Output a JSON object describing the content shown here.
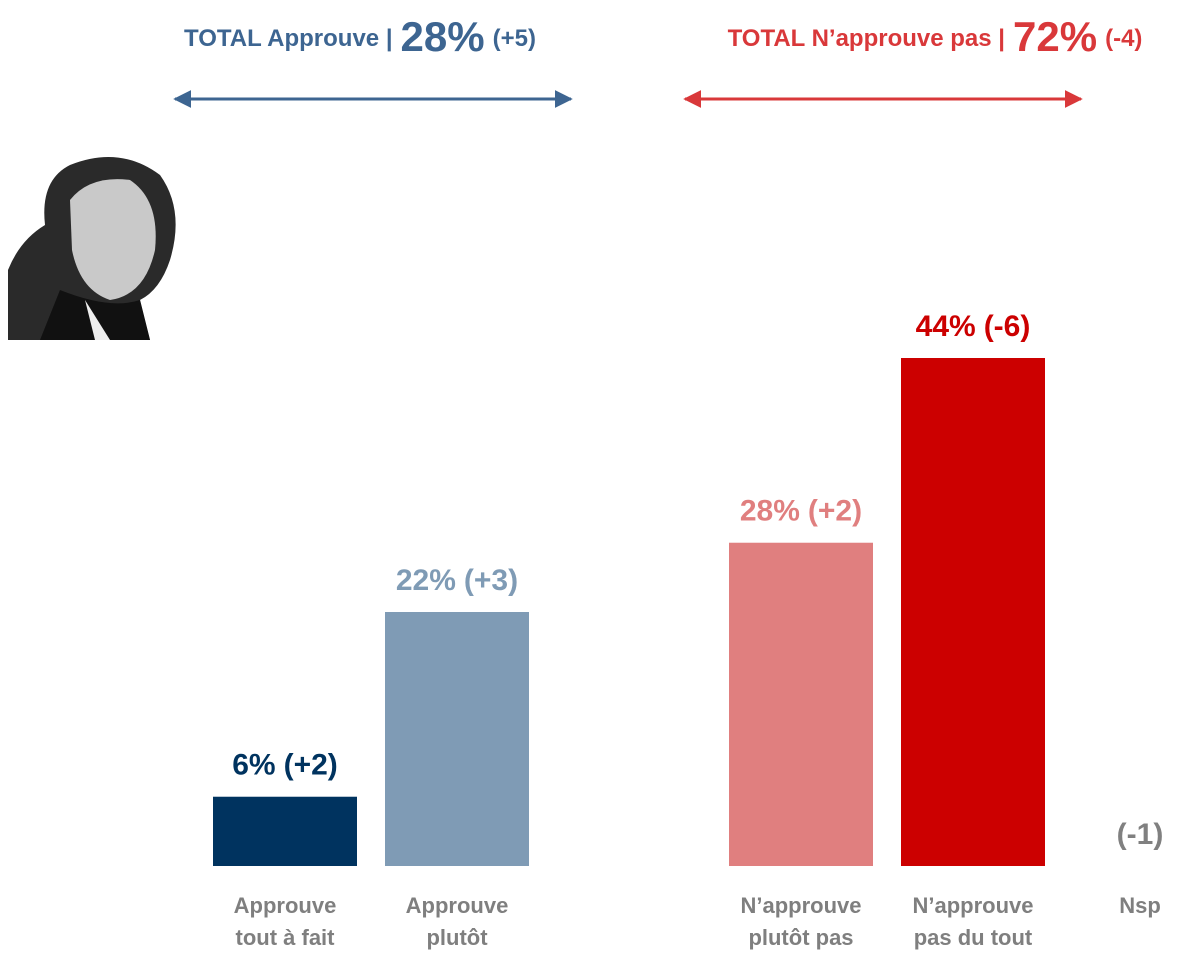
{
  "chart_data": {
    "type": "bar",
    "groups": [
      {
        "label": "TOTAL Approuve |",
        "value_label": "28%",
        "change": "(+5)",
        "color": "#3d6591"
      },
      {
        "label": "TOTAL N’approuve pas |",
        "value_label": "72%",
        "change": "(-4)",
        "color": "#d9383a"
      }
    ],
    "categories": [
      [
        "Approuve",
        "tout à fait"
      ],
      [
        "Approuve",
        "plutôt"
      ],
      [
        "N’approuve",
        "plutôt pas"
      ],
      [
        "N’approuve",
        "pas du tout"
      ],
      [
        "Nsp"
      ]
    ],
    "values": [
      6,
      22,
      28,
      44,
      null
    ],
    "value_labels": [
      "6%",
      "22%",
      "28%",
      "44%",
      null
    ],
    "changes": [
      "(+2)",
      "(+3)",
      "(+2)",
      "(-6)",
      "(-1)"
    ],
    "colors": [
      "#00335f",
      "#7f9bb5",
      "#e07f7f",
      "#cc0000",
      "#808080"
    ]
  }
}
